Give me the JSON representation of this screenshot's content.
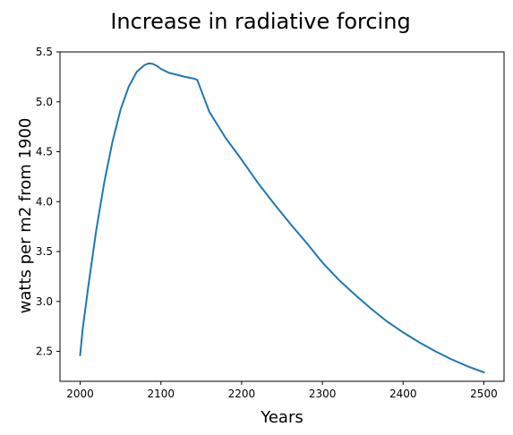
{
  "chart_data": {
    "type": "line",
    "title": "Increase in radiative forcing",
    "xlabel": "Years",
    "ylabel": "watts per m2 from 1900",
    "xlim": [
      1975,
      2525
    ],
    "ylim": [
      2.2,
      5.5
    ],
    "x_ticks": [
      2000,
      2100,
      2200,
      2300,
      2400,
      2500
    ],
    "x_tick_labels": [
      "2000",
      "2100",
      "2200",
      "2300",
      "2400",
      "2500"
    ],
    "y_ticks": [
      2.5,
      3.0,
      3.5,
      4.0,
      4.5,
      5.0,
      5.5
    ],
    "y_tick_labels": [
      "2.5",
      "3.0",
      "3.5",
      "4.0",
      "4.5",
      "5.0",
      "5.5"
    ],
    "grid": false,
    "legend": null,
    "series": [
      {
        "color": "#1f77b4",
        "x": [
          2000,
          2003,
          2010,
          2020,
          2030,
          2040,
          2050,
          2060,
          2070,
          2080,
          2085,
          2090,
          2095,
          2100,
          2110,
          2120,
          2130,
          2140,
          2145,
          2160,
          2180,
          2200,
          2220,
          2240,
          2260,
          2280,
          2300,
          2320,
          2340,
          2360,
          2380,
          2400,
          2420,
          2440,
          2460,
          2480,
          2500
        ],
        "y": [
          2.46,
          2.72,
          3.15,
          3.72,
          4.2,
          4.6,
          4.92,
          5.15,
          5.3,
          5.37,
          5.385,
          5.38,
          5.36,
          5.33,
          5.29,
          5.27,
          5.25,
          5.235,
          5.22,
          4.9,
          4.64,
          4.42,
          4.19,
          3.98,
          3.78,
          3.59,
          3.39,
          3.22,
          3.07,
          2.93,
          2.8,
          2.69,
          2.59,
          2.5,
          2.42,
          2.35,
          2.29
        ]
      }
    ]
  }
}
